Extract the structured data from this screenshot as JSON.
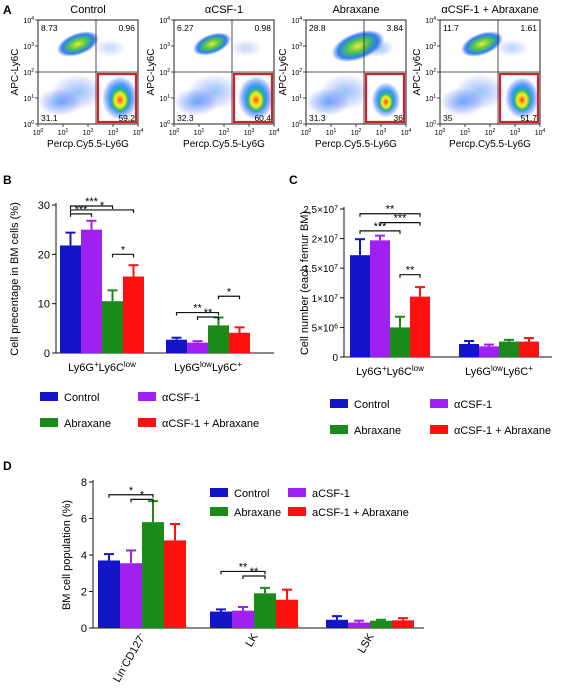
{
  "panel_labels": [
    "A",
    "B",
    "C",
    "D"
  ],
  "colors": {
    "Control": "#1414c8",
    "aCSF-1": "#a020f0",
    "Abraxane": "#1a8a1a",
    "aCSF-1 + Abraxane": "#ff1010",
    "gate_box": "#d0202a"
  },
  "panel_a": {
    "x_label": "Percp.Cy5.5-Ly6G",
    "y_label": "APC-Ly6C",
    "tick_labels": [
      "10^0",
      "10^1",
      "10^2",
      "10^3",
      "10^4"
    ],
    "plots": [
      {
        "title": "Control",
        "quadrants": {
          "ul": "8.73",
          "ur": "0.96",
          "ll": "31.1",
          "lr": "59.2"
        }
      },
      {
        "title": "αCSF-1",
        "quadrants": {
          "ul": "6.27",
          "ur": "0.98",
          "ll": "32.3",
          "lr": "60.4"
        }
      },
      {
        "title": "Abraxane",
        "quadrants": {
          "ul": "28.8",
          "ur": "3.84",
          "ll": "31.3",
          "lr": "36"
        }
      },
      {
        "title": "αCSF-1 + Abraxane",
        "quadrants": {
          "ul": "11.7",
          "ur": "1.61",
          "ll": "35",
          "lr": "51.7"
        }
      }
    ]
  },
  "chart_data": [
    {
      "id": "B",
      "type": "bar",
      "ylabel": "Cell precentage in BM cells (%)",
      "ylim": [
        0,
        30
      ],
      "yticks": [
        "0",
        "10",
        "20",
        "30"
      ],
      "categories": [
        "Ly6G+Ly6Clow",
        "Ly6GlowLy6C+"
      ],
      "category_parts": [
        {
          "base1": "Ly6G",
          "sup1": "+",
          "base2": "Ly6C",
          "sup2": "low"
        },
        {
          "base1": "Ly6G",
          "sup1": "low",
          "base2": "Ly6C",
          "sup2": "+"
        }
      ],
      "series": [
        {
          "name": "Control",
          "values": [
            21.8,
            2.7
          ],
          "errors": [
            2.6,
            0.4
          ]
        },
        {
          "name": "αCSF-1",
          "values": [
            25.0,
            2.1
          ],
          "errors": [
            1.8,
            0.3
          ]
        },
        {
          "name": "Abraxane",
          "values": [
            10.5,
            5.6
          ],
          "errors": [
            2.2,
            1.6
          ]
        },
        {
          "name": "αCSF-1 + Abraxane",
          "values": [
            15.5,
            4.1
          ],
          "errors": [
            2.3,
            1.1
          ]
        }
      ],
      "significance": [
        {
          "cat": 0,
          "from": 0,
          "to": 1,
          "label": "***",
          "y": 28.2
        },
        {
          "cat": 0,
          "from": 0,
          "to": 2,
          "label": "***",
          "y": 29.8
        },
        {
          "cat": 0,
          "from": 0,
          "to": 3,
          "label": "*",
          "y": 29.0
        },
        {
          "cat": 0,
          "from": 2,
          "to": 3,
          "label": "*",
          "y": 20.0
        },
        {
          "cat": 1,
          "from": 0,
          "to": 2,
          "label": "**",
          "y": 8.2
        },
        {
          "cat": 1,
          "from": 1,
          "to": 2,
          "label": "**",
          "y": 7.3
        },
        {
          "cat": 1,
          "from": 2,
          "to": 3,
          "label": "*",
          "y": 11.5
        }
      ],
      "legend": [
        "Control",
        "αCSF-1",
        "Abraxane",
        "αCSF-1 + Abraxane"
      ]
    },
    {
      "id": "C",
      "type": "bar",
      "ylabel": "Cell number (each femur BM)",
      "ylim": [
        0,
        25000000
      ],
      "yticks": [
        "0",
        "5×10^6",
        "1×10^7",
        "1.5×10^7",
        "2×10^7",
        "2.5×10^7"
      ],
      "categories": [
        "Ly6G+Ly6Clow",
        "Ly6GlowLy6C+"
      ],
      "category_parts": [
        {
          "base1": "Ly6G",
          "sup1": "+",
          "base2": "Ly6C",
          "sup2": "low"
        },
        {
          "base1": "Ly6G",
          "sup1": "low",
          "base2": "Ly6C",
          "sup2": "+"
        }
      ],
      "series": [
        {
          "name": "Control",
          "values": [
            17200000,
            2200000
          ],
          "errors": [
            2700000,
            500000
          ]
        },
        {
          "name": "αCSF-1",
          "values": [
            19700000,
            1800000
          ],
          "errors": [
            800000,
            300000
          ]
        },
        {
          "name": "Abraxane",
          "values": [
            5000000,
            2600000
          ],
          "errors": [
            1800000,
            300000
          ]
        },
        {
          "name": "αCSF-1 + Abraxane",
          "values": [
            10200000,
            2600000
          ],
          "errors": [
            1600000,
            600000
          ]
        }
      ],
      "significance": [
        {
          "cat": 0,
          "from": 0,
          "to": 3,
          "label": "**",
          "y": 24200000
        },
        {
          "cat": 0,
          "from": 1,
          "to": 3,
          "label": "***",
          "y": 22700000
        },
        {
          "cat": 0,
          "from": 0,
          "to": 2,
          "label": "***",
          "y": 21300000
        },
        {
          "cat": 0,
          "from": 2,
          "to": 3,
          "label": "**",
          "y": 13900000
        }
      ],
      "legend": [
        "Control",
        "αCSF-1",
        "Abraxane",
        "αCSF-1 + Abraxane"
      ]
    },
    {
      "id": "D",
      "type": "bar",
      "ylabel": "BM cell population (%)",
      "ylim": [
        0,
        8
      ],
      "yticks": [
        "0",
        "2",
        "4",
        "6",
        "8"
      ],
      "categories": [
        "Lin-CD127-",
        "LK",
        "LSK"
      ],
      "category_parts": [
        {
          "base1": "Lin",
          "sup1": "-",
          "base2": "CD127",
          "sup2": "-"
        },
        {
          "base1": "LK",
          "sup1": "",
          "base2": "",
          "sup2": ""
        },
        {
          "base1": "LSK",
          "sup1": "",
          "base2": "",
          "sup2": ""
        }
      ],
      "series": [
        {
          "name": "Control",
          "values": [
            3.7,
            0.9,
            0.45
          ],
          "errors": [
            0.35,
            0.12,
            0.2
          ]
        },
        {
          "name": "aCSF-1",
          "values": [
            3.55,
            0.95,
            0.3
          ],
          "errors": [
            0.7,
            0.2,
            0.1
          ]
        },
        {
          "name": "Abraxane",
          "values": [
            5.8,
            1.9,
            0.4
          ],
          "errors": [
            1.15,
            0.3,
            0.05
          ]
        },
        {
          "name": "aCSF-1 + Abraxane",
          "values": [
            4.8,
            1.55,
            0.42
          ],
          "errors": [
            0.9,
            0.55,
            0.12
          ]
        }
      ],
      "significance": [
        {
          "cat": 0,
          "from": 0,
          "to": 2,
          "label": "*",
          "y": 7.3
        },
        {
          "cat": 0,
          "from": 1,
          "to": 2,
          "label": "*",
          "y": 7.05
        },
        {
          "cat": 1,
          "from": 0,
          "to": 2,
          "label": "**",
          "y": 3.1
        },
        {
          "cat": 1,
          "from": 1,
          "to": 2,
          "label": "**",
          "y": 2.85
        }
      ],
      "legend": [
        "Control",
        "aCSF-1",
        "Abraxane",
        "aCSF-1 + Abraxane"
      ]
    }
  ]
}
